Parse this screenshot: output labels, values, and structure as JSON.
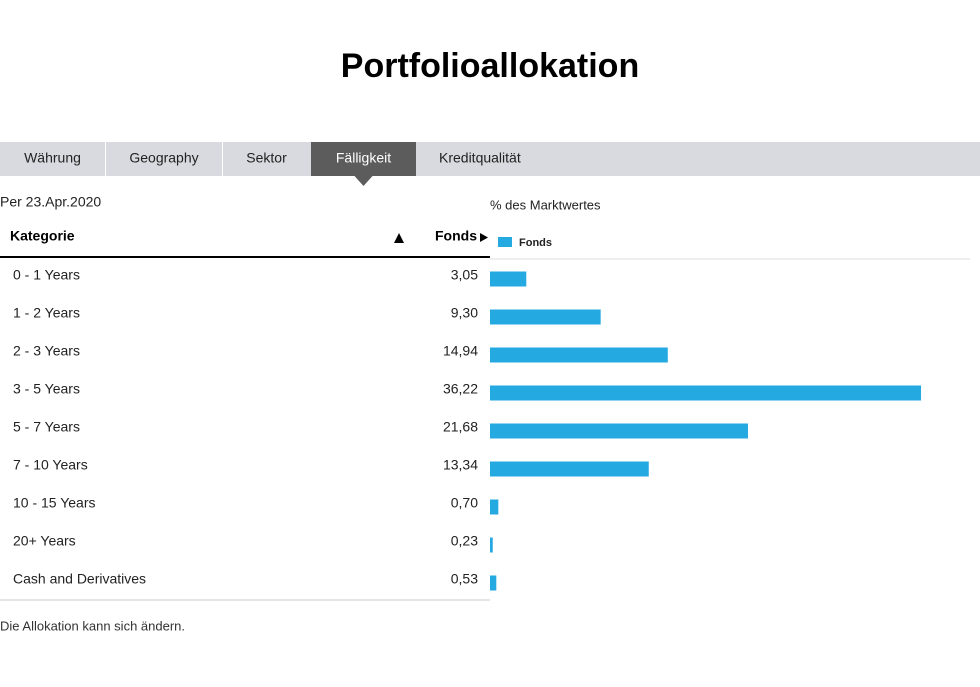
{
  "header": {
    "title": "Portfolioallokation"
  },
  "tabs": [
    "Währung",
    "Geography",
    "Sektor",
    "Fälligkeit",
    "Kreditqualität"
  ],
  "active_tab": 3,
  "as_of": "Per 23.Apr.2020",
  "table": {
    "columns": [
      "Kategorie",
      "Fonds"
    ]
  },
  "chart_data": {
    "type": "bar",
    "orientation": "horizontal",
    "title": "% des Marktwertes",
    "categories": [
      "0 - 1 Years",
      "1 - 2 Years",
      "2 - 3 Years",
      "3 - 5 Years",
      "5 - 7 Years",
      "7 - 10 Years",
      "10 - 15 Years",
      "20+ Years",
      "Cash and Derivatives"
    ],
    "series": [
      {
        "name": "Fonds",
        "color": "#24a9e1",
        "values": [
          3.05,
          9.3,
          14.94,
          36.22,
          21.68,
          13.34,
          0.7,
          0.23,
          0.53
        ],
        "value_labels": [
          "3,05",
          "9,30",
          "14,94",
          "36,22",
          "21,68",
          "13,34",
          "0,70",
          "0,23",
          "0,53"
        ]
      }
    ]
  },
  "footnote": "Die Allokation kann sich ändern."
}
